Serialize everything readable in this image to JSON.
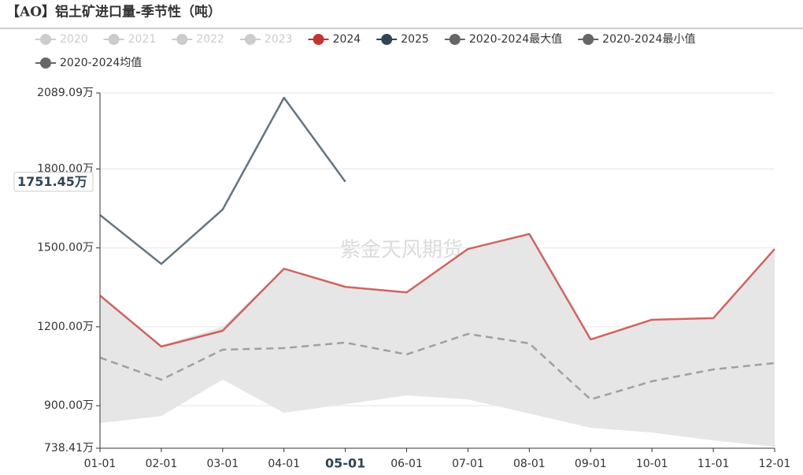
{
  "chart_data": {
    "type": "line",
    "title": "【AO】铝土矿进口量-季节性（吨）",
    "watermark": "紫金天风期货",
    "categories": [
      "01-01",
      "02-01",
      "03-01",
      "04-01",
      "05-01",
      "06-01",
      "07-01",
      "08-01",
      "09-01",
      "10-01",
      "11-01",
      "12-01"
    ],
    "inactive_legend": [
      {
        "name": "2020",
        "color": "#cccccc"
      },
      {
        "name": "2021",
        "color": "#cccccc"
      },
      {
        "name": "2022",
        "color": "#cccccc"
      },
      {
        "name": "2023",
        "color": "#cccccc"
      }
    ],
    "series": [
      {
        "name": "2024",
        "color": "#c23531",
        "style": "solid",
        "values": [
          1319,
          1125,
          1185,
          1421,
          1352,
          1331,
          1496,
          1553,
          1152,
          1227,
          1233,
          1496
        ]
      },
      {
        "name": "2025",
        "color": "#2f4554",
        "style": "solid",
        "values": [
          1625,
          1439,
          1646,
          2071,
          1751.45,
          null,
          null,
          null,
          null,
          null,
          null,
          null
        ]
      },
      {
        "name": "2020-2024最大值",
        "color": "#666666",
        "style": "band-top",
        "values": [
          1319,
          1130,
          1200,
          1421,
          1352,
          1331,
          1496,
          1553,
          1152,
          1227,
          1233,
          1496
        ]
      },
      {
        "name": "2020-2024最小值",
        "color": "#666666",
        "style": "band-bottom",
        "values": [
          834,
          861,
          999,
          873,
          906,
          939,
          924,
          870,
          816,
          798,
          768,
          744
        ]
      },
      {
        "name": "2020-2024均值",
        "color": "#666666",
        "style": "dashed",
        "values": [
          1083,
          999,
          1113,
          1119,
          1140,
          1095,
          1173,
          1137,
          924,
          993,
          1038,
          1062
        ]
      }
    ],
    "band_color": "#e6e6e6",
    "ylim": [
      738.41,
      2089.09
    ],
    "yticks": [
      {
        "value": 738.41,
        "label": "738.41万"
      },
      {
        "value": 900,
        "label": "900.00万"
      },
      {
        "value": 1200,
        "label": "1200.00万"
      },
      {
        "value": 1500,
        "label": "1500.00万"
      },
      {
        "value": 1800,
        "label": "1800.00万"
      },
      {
        "value": 2089.09,
        "label": "2089.09万"
      }
    ],
    "grid": true,
    "axis_pointer": {
      "category_index": 4,
      "value": 1751.45,
      "label": "1751.45万"
    }
  }
}
